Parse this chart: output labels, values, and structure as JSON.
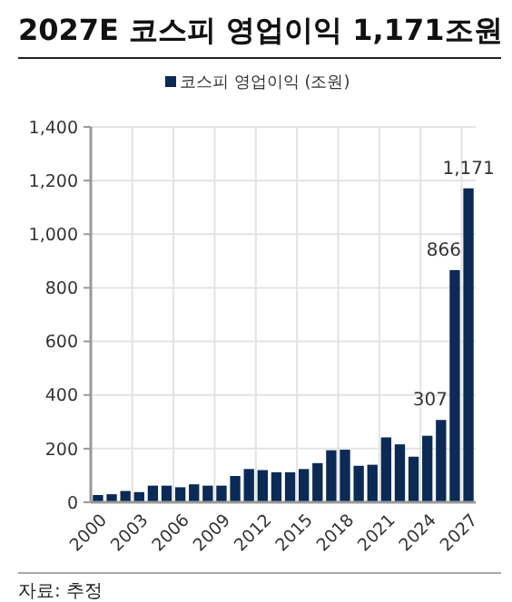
{
  "chart_data": {
    "type": "bar",
    "title": "2027E 코스피 영업이익 1,171조원",
    "categories": [
      "2000",
      null,
      null,
      "2003",
      null,
      null,
      "2006",
      null,
      null,
      "2009",
      null,
      null,
      "2012",
      null,
      null,
      "2015",
      null,
      null,
      "2018",
      null,
      null,
      "2021",
      null,
      null,
      "2024",
      null,
      null,
      "2027"
    ],
    "series": [
      {
        "name": "코스피 영업이익 (조원)",
        "color": "#0b2a55",
        "values": [
          27,
          30,
          42,
          38,
          62,
          62,
          56,
          67,
          62,
          62,
          98,
          124,
          120,
          112,
          112,
          124,
          146,
          194,
          196,
          136,
          140,
          242,
          216,
          170,
          248,
          307,
          866,
          1171
        ],
        "value_labels": [
          null,
          null,
          null,
          null,
          null,
          null,
          null,
          null,
          null,
          null,
          null,
          null,
          null,
          null,
          null,
          null,
          null,
          null,
          null,
          null,
          null,
          null,
          null,
          null,
          null,
          "307",
          "866",
          "1,171"
        ]
      }
    ],
    "ylim": [
      0,
      1400
    ],
    "yticks": [
      {
        "value": 0,
        "label": "0"
      },
      {
        "value": 200,
        "label": "200"
      },
      {
        "value": 400,
        "label": "400"
      },
      {
        "value": 600,
        "label": "600"
      },
      {
        "value": 800,
        "label": "800"
      },
      {
        "value": 1000,
        "label": "1,000"
      },
      {
        "value": 1200,
        "label": "1,200"
      },
      {
        "value": 1400,
        "label": "1,400"
      }
    ],
    "grid": true,
    "legend": "top",
    "annotations": [
      "자료: 추정"
    ]
  }
}
